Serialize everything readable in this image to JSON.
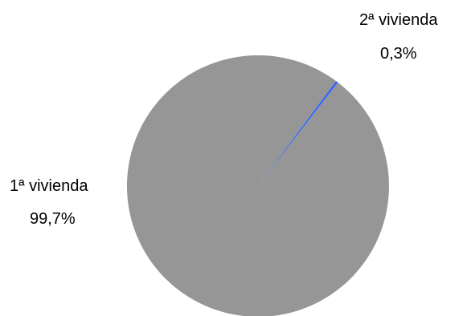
{
  "chart_data": {
    "type": "pie",
    "title": "",
    "slices": [
      {
        "label": "1ª vivienda",
        "value": 99.7,
        "value_label": "99,7%",
        "color": "#969696"
      },
      {
        "label": "2ª vivienda",
        "value": 0.3,
        "value_label": "0,3%",
        "color": "#3366ff"
      }
    ],
    "legend": "none",
    "data_labels": "outside"
  }
}
